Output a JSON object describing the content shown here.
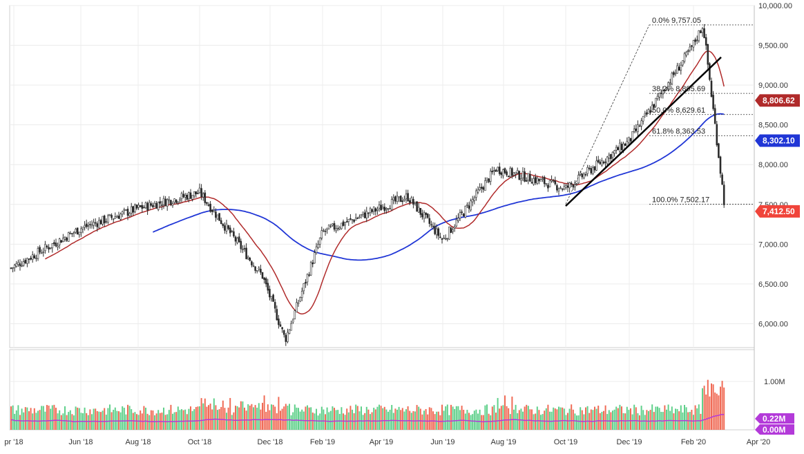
{
  "chart_data": {
    "type": "candlestick",
    "title": "",
    "x_axis": {
      "labels": [
        "pr '18",
        "Jun '18",
        "Aug '18",
        "Oct '18",
        "Dec '18",
        "Feb '19",
        "Apr '19",
        "Jun '19",
        "Aug '19",
        "Oct '19",
        "Dec '19",
        "Feb '20",
        "Apr '20"
      ]
    },
    "price_axis": {
      "range": [
        5700,
        10000
      ],
      "ticks": [
        "6,000.00",
        "6,500.00",
        "7,000.00",
        "7,500.00",
        "8,000.00",
        "8,500.00",
        "9,000.00",
        "9,500.00",
        "10,000.00"
      ],
      "grid": true
    },
    "price_series": {
      "name": "",
      "color_up": "#2b2b2b",
      "color_down": "#2b2b2b",
      "anchors": [
        [
          "pr '18",
          6700
        ],
        [
          "Jun '18",
          7200
        ],
        [
          "Aug '18",
          7450
        ],
        [
          "Oct '18",
          7650
        ],
        [
          "Dec '18",
          6600
        ],
        [
          "Dec '18+",
          5800
        ],
        [
          "Feb '19",
          7150
        ],
        [
          "Apr '19",
          7600
        ],
        [
          "Jun '19",
          7050
        ],
        [
          "Aug '19",
          7950
        ],
        [
          "Oct '19",
          7700
        ],
        [
          "Dec '19",
          8300
        ],
        [
          "Feb '20",
          9450
        ],
        [
          "Feb '20+",
          9757
        ],
        [
          "end",
          7412
        ]
      ]
    },
    "moving_average_fast": {
      "color": "#b02a2a",
      "last_value": "8,806.62"
    },
    "moving_average_slow": {
      "color": "#2036d6",
      "last_value": "8,302.10"
    },
    "last_price": {
      "value": "7,412.50",
      "color": "#f0443a"
    },
    "fibonacci": [
      {
        "label": "0.0% 9,757.05",
        "value": 9757.05
      },
      {
        "label": "38.2% 8,895.69",
        "value": 8895.69
      },
      {
        "label": "50.0% 8,629.61",
        "value": 8629.61
      },
      {
        "label": "61.8% 8,363.53",
        "value": 8363.53
      },
      {
        "label": "100.0% 7,502.17",
        "value": 7502.17
      }
    ],
    "trendline": {
      "from": 7480,
      "to": 9350,
      "color": "#000000"
    },
    "volume": {
      "ticks": [
        "1.00M"
      ],
      "up_color": "#5fd08a",
      "down_color": "#f06a55",
      "avg_color": "#b33ad9",
      "badges": [
        {
          "text": "0.22M",
          "color": "#b33ad9"
        },
        {
          "text": "0.00M",
          "color": "#b33ad9"
        }
      ]
    }
  }
}
